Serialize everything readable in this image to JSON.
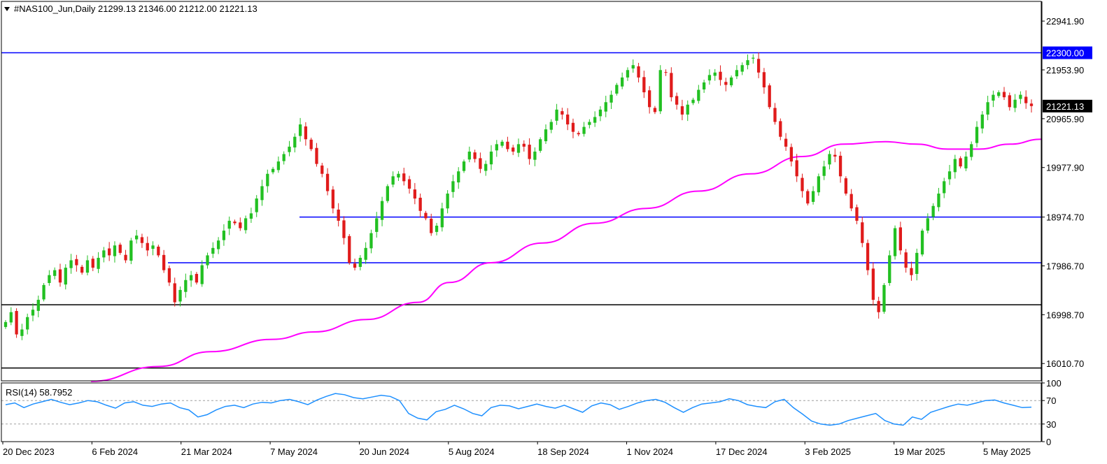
{
  "header": {
    "symbol": "#NAS100_Jun,Daily",
    "ohlc": "21299.13 21346.00 21212.00 21221.13"
  },
  "chart_data": [
    {
      "type": "candlestick",
      "ylim": [
        15660,
        23340
      ],
      "y_ticks": [
        "22941.90",
        "21953.90",
        "20965.90",
        "19977.90",
        "18974.70",
        "17986.70",
        "16998.70",
        "16010.70"
      ],
      "x_tick_labels": [
        "20 Dec 2023",
        "6 Feb 2024",
        "21 Mar 2024",
        "7 May 2024",
        "20 Jun 2024",
        "5 Aug 2024",
        "18 Sep 2024",
        "1 Nov 2024",
        "17 Dec 2024",
        "3 Feb 2025",
        "19 Mar 2025",
        "5 May 2025"
      ],
      "last_price": 21221.13,
      "last_price_label": "21221.13",
      "bull_color": "#22c022",
      "bear_color": "#e01b1b",
      "close_path": [
        16850,
        17050,
        16600,
        16700,
        16950,
        17100,
        17300,
        17600,
        17800,
        17900,
        17650,
        17950,
        18100,
        18000,
        17850,
        18100,
        17950,
        18150,
        18300,
        18200,
        18400,
        18250,
        18100,
        18500,
        18600,
        18450,
        18300,
        18400,
        18200,
        17900,
        17650,
        17250,
        17500,
        17700,
        17800,
        17650,
        18000,
        18200,
        18350,
        18500,
        18700,
        18900,
        18850,
        18750,
        18950,
        19050,
        19350,
        19600,
        19850,
        19950,
        20100,
        20250,
        20400,
        20600,
        20850,
        20550,
        20350,
        20050,
        19850,
        19500,
        19150,
        18900,
        18550,
        18050,
        17950,
        18150,
        18350,
        18650,
        18950,
        19300,
        19600,
        19800,
        19850,
        19700,
        19550,
        19350,
        19100,
        18950,
        18650,
        18800,
        19150,
        19450,
        19700,
        19900,
        20100,
        20300,
        20150,
        19950,
        20050,
        20300,
        20450,
        20500,
        20350,
        20300,
        20450,
        20400,
        20150,
        20300,
        20550,
        20750,
        20900,
        21150,
        21050,
        20850,
        20700,
        20650,
        20800,
        20900,
        21000,
        21150,
        21300,
        21450,
        21650,
        21800,
        21950,
        22050,
        21800,
        21500,
        21200,
        21100,
        21950,
        21900,
        21400,
        21250,
        21050,
        21250,
        21350,
        21550,
        21700,
        21850,
        21900,
        21750,
        21650,
        21800,
        21950,
        22050,
        22150,
        22200,
        21900,
        21600,
        21200,
        20900,
        20600,
        20400,
        20100,
        19800,
        19500,
        19250,
        19500,
        19800,
        20000,
        20250,
        20200,
        19800,
        19450,
        19150,
        18900,
        18450,
        17900,
        17300,
        17050,
        17600,
        18200,
        18750,
        18300,
        17950,
        17800,
        18250,
        18700,
        18950,
        19200,
        19450,
        19700,
        19900,
        20150,
        20000,
        20200,
        20450,
        20800,
        21050,
        21300,
        21450,
        21500,
        21400,
        21200,
        21350,
        21450,
        21280,
        21221.13
      ],
      "series": [
        {
          "name": "",
          "kind": "moving-average",
          "color": "#ff00ff",
          "x_fraction": [
            0.085,
            0.15,
            0.2,
            0.26,
            0.3,
            0.35,
            0.4,
            0.43,
            0.47,
            0.52,
            0.57,
            0.62,
            0.67,
            0.72,
            0.77,
            0.81,
            0.85,
            0.88,
            0.91,
            0.94,
            0.97,
            1.0
          ],
          "values": [
            15650,
            15950,
            16250,
            16500,
            16650,
            16900,
            17250,
            17650,
            18050,
            18450,
            18850,
            19150,
            19500,
            19850,
            20200,
            20450,
            20500,
            20450,
            20350,
            20350,
            20450,
            20550
          ]
        }
      ],
      "horizontal_lines": [
        {
          "value": 22300,
          "color": "#0000ff",
          "span": "full",
          "label": "22300.00"
        },
        {
          "value": 18974.7,
          "color": "#0000ff",
          "span": "from-may-2024"
        },
        {
          "value": 18050,
          "color": "#0000ff",
          "span": "from-mar-2024"
        },
        {
          "value": 17200,
          "color": "#000000",
          "span": "full"
        },
        {
          "value": 15920,
          "color": "#000000",
          "span": "full"
        }
      ]
    },
    {
      "type": "line",
      "title": "RSI(14) 58.7952",
      "ylim": [
        0,
        100
      ],
      "y_ticks": [
        "100",
        "70",
        "30",
        "0"
      ],
      "levels": [
        70,
        30
      ],
      "series": [
        {
          "name": "",
          "color": "#1e90ff",
          "values": [
            63,
            66,
            58,
            64,
            68,
            72,
            67,
            63,
            66,
            70,
            68,
            62,
            57,
            66,
            68,
            62,
            60,
            64,
            66,
            58,
            54,
            42,
            46,
            54,
            60,
            62,
            58,
            64,
            67,
            66,
            70,
            72,
            68,
            63,
            71,
            77,
            82,
            80,
            75,
            73,
            76,
            79,
            77,
            70,
            48,
            40,
            37,
            51,
            55,
            62,
            56,
            48,
            44,
            58,
            62,
            61,
            56,
            60,
            64,
            60,
            57,
            62,
            56,
            50,
            61,
            66,
            63,
            55,
            60,
            66,
            70,
            72,
            67,
            58,
            50,
            58,
            64,
            66,
            68,
            73,
            70,
            63,
            60,
            58,
            68,
            72,
            58,
            47,
            35,
            30,
            28,
            30,
            36,
            40,
            44,
            48,
            36,
            30,
            28,
            42,
            38,
            50,
            55,
            60,
            64,
            62,
            66,
            70,
            71,
            66,
            62,
            58,
            58.8
          ]
        }
      ]
    }
  ]
}
